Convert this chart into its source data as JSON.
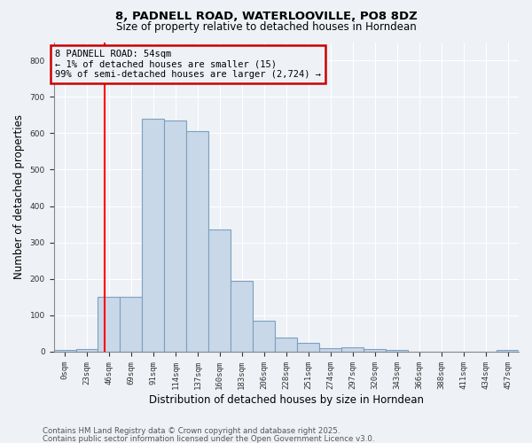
{
  "title1": "8, PADNELL ROAD, WATERLOOVILLE, PO8 8DZ",
  "title2": "Size of property relative to detached houses in Horndean",
  "xlabel": "Distribution of detached houses by size in Horndean",
  "ylabel": "Number of detached properties",
  "bin_labels": [
    "0sqm",
    "23sqm",
    "46sqm",
    "69sqm",
    "91sqm",
    "114sqm",
    "137sqm",
    "160sqm",
    "183sqm",
    "206sqm",
    "228sqm",
    "251sqm",
    "274sqm",
    "297sqm",
    "320sqm",
    "343sqm",
    "366sqm",
    "388sqm",
    "411sqm",
    "434sqm",
    "457sqm"
  ],
  "bar_heights": [
    5,
    7,
    150,
    150,
    640,
    635,
    605,
    335,
    195,
    85,
    40,
    25,
    10,
    13,
    8,
    5,
    0,
    0,
    0,
    0,
    5
  ],
  "bar_color": "#c8d8e8",
  "bar_edge_color": "#7ca0c0",
  "annotation_box_text": "8 PADNELL ROAD: 54sqm\n← 1% of detached houses are smaller (15)\n99% of semi-detached houses are larger (2,724) →",
  "annotation_box_color": "#cc0000",
  "red_line_x": 2.3,
  "ylim": [
    0,
    850
  ],
  "yticks": [
    0,
    100,
    200,
    300,
    400,
    500,
    600,
    700,
    800
  ],
  "footer1": "Contains HM Land Registry data © Crown copyright and database right 2025.",
  "footer2": "Contains public sector information licensed under the Open Government Licence v3.0.",
  "bg_color": "#eef2f6",
  "grid_color": "#ffffff"
}
